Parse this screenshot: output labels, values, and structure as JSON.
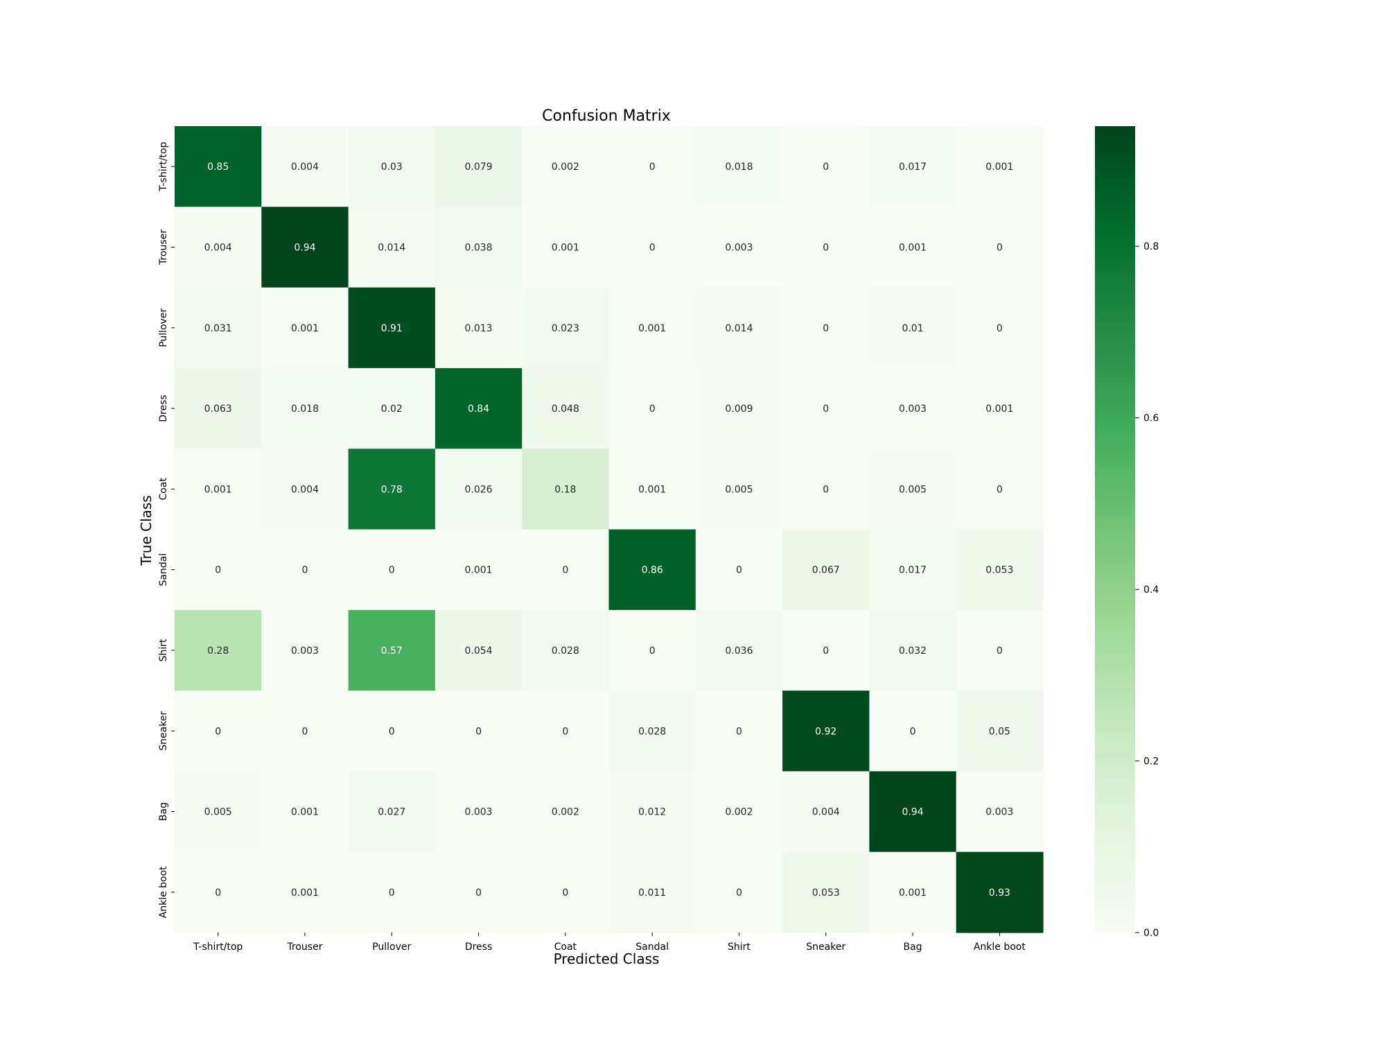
{
  "chart_data": {
    "type": "heatmap",
    "title": "Confusion Matrix",
    "xlabel": "Predicted Class",
    "ylabel": "True Class",
    "x_categories": [
      "T-shirt/top",
      "Trouser",
      "Pullover",
      "Dress",
      "Coat",
      "Sandal",
      "Shirt",
      "Sneaker",
      "Bag",
      "Ankle boot"
    ],
    "y_categories": [
      "T-shirt/top",
      "Trouser",
      "Pullover",
      "Dress",
      "Coat",
      "Sandal",
      "Shirt",
      "Sneaker",
      "Bag",
      "Ankle boot"
    ],
    "values": [
      [
        0.85,
        0.004,
        0.03,
        0.079,
        0.002,
        0,
        0.018,
        0,
        0.017,
        0.001
      ],
      [
        0.004,
        0.94,
        0.014,
        0.038,
        0.001,
        0,
        0.003,
        0,
        0.001,
        0
      ],
      [
        0.031,
        0.001,
        0.91,
        0.013,
        0.023,
        0.001,
        0.014,
        0,
        0.01,
        0
      ],
      [
        0.063,
        0.018,
        0.02,
        0.84,
        0.048,
        0,
        0.009,
        0,
        0.003,
        0.001
      ],
      [
        0.001,
        0.004,
        0.78,
        0.026,
        0.18,
        0.001,
        0.005,
        0,
        0.005,
        0
      ],
      [
        0,
        0,
        0,
        0.001,
        0,
        0.86,
        0,
        0.067,
        0.017,
        0.053
      ],
      [
        0.28,
        0.003,
        0.57,
        0.054,
        0.028,
        0,
        0.036,
        0,
        0.032,
        0
      ],
      [
        0,
        0,
        0,
        0,
        0,
        0.028,
        0,
        0.92,
        0,
        0.05
      ],
      [
        0.005,
        0.001,
        0.027,
        0.003,
        0.002,
        0.012,
        0.002,
        0.004,
        0.94,
        0.003
      ],
      [
        0,
        0.001,
        0,
        0,
        0,
        0.011,
        0,
        0.053,
        0.001,
        0.93
      ]
    ],
    "colormap": "Greens",
    "colorbar": {
      "range": [
        0,
        0.94
      ],
      "ticks": [
        0.0,
        0.2,
        0.4,
        0.6,
        0.8
      ],
      "tick_labels": [
        "0.0",
        "0.2",
        "0.4",
        "0.6",
        "0.8"
      ]
    },
    "grid": false,
    "legend": "colorbar-right"
  }
}
